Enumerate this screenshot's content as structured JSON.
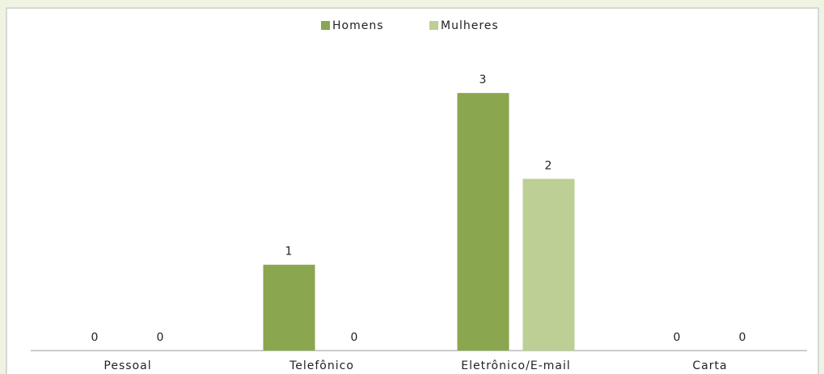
{
  "chart_data": {
    "type": "bar",
    "categories": [
      "Pessoal",
      "Telefônico",
      "Eletrônico/E-mail",
      "Carta"
    ],
    "series": [
      {
        "name": "Homens",
        "color": "#8aa64e",
        "values": [
          0,
          1,
          3,
          0
        ]
      },
      {
        "name": "Mulheres",
        "color": "#bccf94",
        "values": [
          0,
          0,
          2,
          0
        ]
      }
    ],
    "ylim": [
      0,
      3.5
    ],
    "legend": "top",
    "grid": false
  }
}
